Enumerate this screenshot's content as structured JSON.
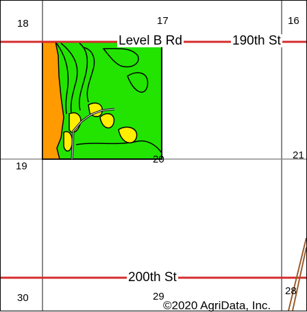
{
  "map": {
    "section_numbers": {
      "s18": "18",
      "s17": "17",
      "s16": "16",
      "s19": "19",
      "s20": "20",
      "s21": "21",
      "s30": "30",
      "s29": "29",
      "s28": "28"
    },
    "roads": {
      "level_b_rd": "Level B Rd",
      "th190": "190th St",
      "th200": "200th St"
    },
    "copyright": "©2020 AgriData, Inc.",
    "colors": {
      "road_line": "#d62b2b",
      "grid_line": "#8a8a8a",
      "soil_green": "#22e400",
      "soil_orange": "#ff9a00",
      "soil_yellow": "#ffee00",
      "field_border": "#000000",
      "rail_line": "#9a5a2a"
    }
  }
}
